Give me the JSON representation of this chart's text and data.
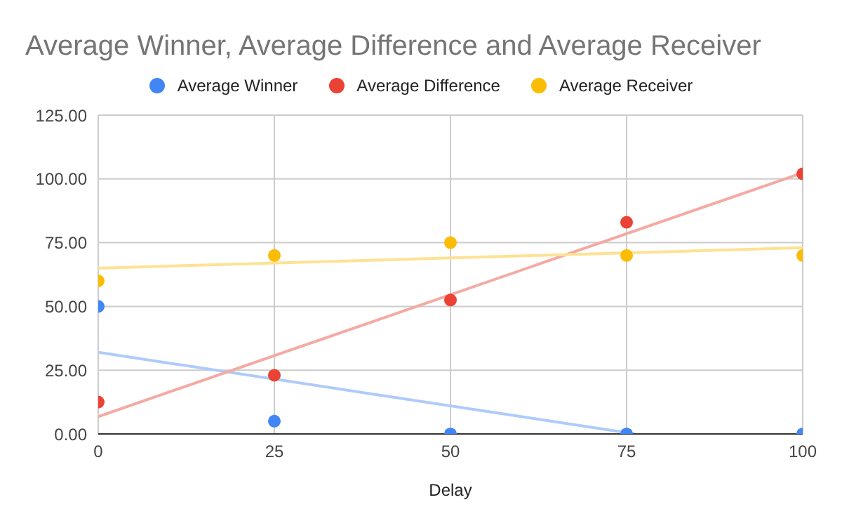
{
  "chart_data": {
    "type": "scatter",
    "title": "Average Winner, Average Difference and Average Receiver",
    "xlabel": "Delay",
    "x": [
      0,
      25,
      50,
      75,
      100
    ],
    "series": [
      {
        "name": "Average Winner",
        "color": "#4285f4",
        "values": [
          50,
          5,
          0,
          0,
          0
        ]
      },
      {
        "name": "Average Difference",
        "color": "#ea4335",
        "values": [
          12.5,
          23,
          52.5,
          83,
          102
        ]
      },
      {
        "name": "Average Receiver",
        "color": "#fbbc04",
        "values": [
          60,
          70,
          75,
          70,
          70
        ]
      },
      {
        "type": "line",
        "marker": "none",
        "color": "#aecbfa",
        "x": [
          0,
          76.2
        ],
        "values": [
          32,
          0
        ]
      },
      {
        "type": "line",
        "marker": "none",
        "color": "#f4aaa3",
        "x": [
          0,
          100
        ],
        "values": [
          6.8,
          102.4
        ]
      },
      {
        "type": "line",
        "marker": "none",
        "color": "#fde293",
        "x": [
          0,
          100
        ],
        "values": [
          65,
          73
        ]
      }
    ],
    "xlim": [
      0,
      100
    ],
    "xticks": [
      0,
      25,
      50,
      75,
      100
    ],
    "ylim": [
      0,
      125
    ],
    "yticks": [
      {
        "value": 0,
        "label": "0.00"
      },
      {
        "value": 25,
        "label": "25.00"
      },
      {
        "value": 50,
        "label": "50.00"
      },
      {
        "value": 75,
        "label": "75.00"
      },
      {
        "value": 100,
        "label": "100.00"
      },
      {
        "value": 125,
        "label": "125.00"
      }
    ],
    "grid": true,
    "legend": "top",
    "marker": "circle"
  }
}
